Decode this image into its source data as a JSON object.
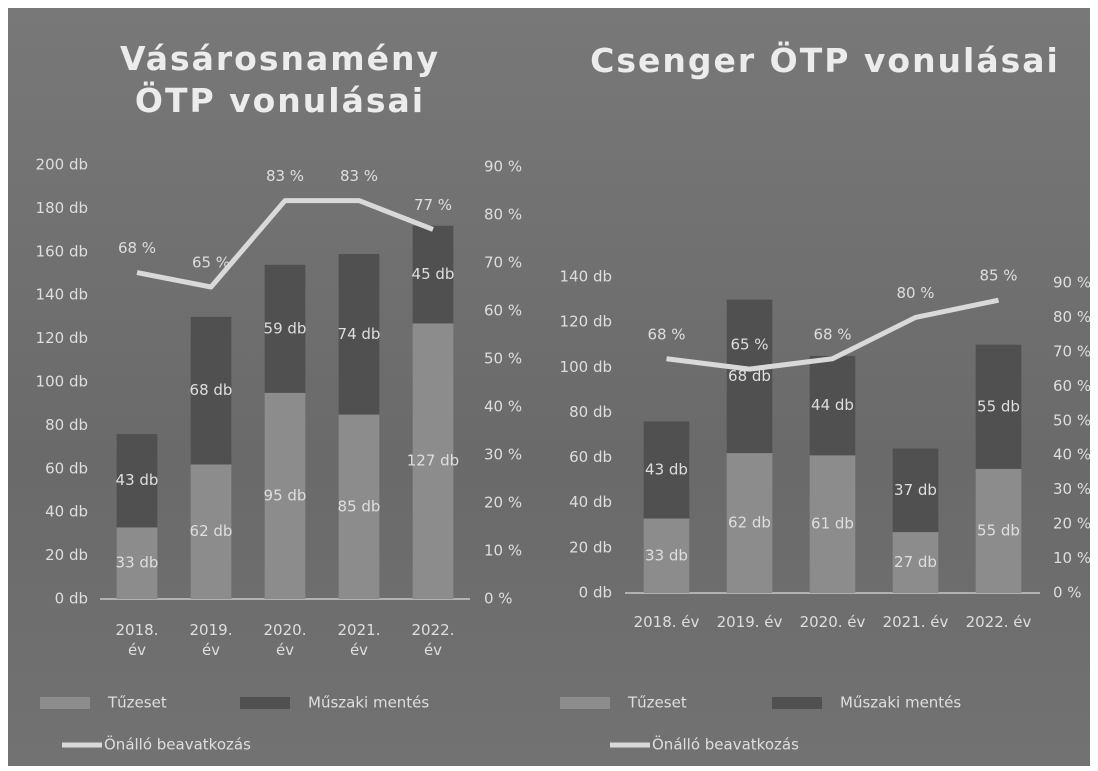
{
  "chart_data": [
    {
      "type": "bar",
      "stacked": true,
      "title": "Vásárosnamény ÖTP vonulásai",
      "categories": [
        "2018. év",
        "2019. év",
        "2020. év",
        "2021. év",
        "2022. év"
      ],
      "series": [
        {
          "name": "Tűzeset",
          "color": "#8c8c8c",
          "values": [
            33,
            62,
            95,
            85,
            127
          ],
          "value_labels": [
            "33 db",
            "62 db",
            "95 db",
            "85 db",
            "127 db"
          ]
        },
        {
          "name": "Műszaki mentés",
          "color": "#505050",
          "values": [
            43,
            68,
            59,
            74,
            45
          ],
          "value_labels": [
            "43 db",
            "68 db",
            "59 db",
            "74 db",
            "45 db"
          ]
        },
        {
          "name": "Önálló beavatkozás",
          "type": "line",
          "axis": "y2",
          "color": "#d9d9d9",
          "values": [
            68,
            65,
            83,
            83,
            77
          ],
          "value_labels": [
            "68 %",
            "65 %",
            "83 %",
            "83 %",
            "77 %"
          ]
        }
      ],
      "ylim": [
        0,
        200
      ],
      "yticks": [
        {
          "value": 0,
          "label": "0 db"
        },
        {
          "value": 20,
          "label": "20 db"
        },
        {
          "value": 40,
          "label": "40 db"
        },
        {
          "value": 60,
          "label": "60 db"
        },
        {
          "value": 80,
          "label": "80 db"
        },
        {
          "value": 100,
          "label": "100 db"
        },
        {
          "value": 120,
          "label": "120 db"
        },
        {
          "value": 140,
          "label": "140 db"
        },
        {
          "value": 160,
          "label": "160 db"
        },
        {
          "value": 180,
          "label": "180 db"
        },
        {
          "value": 200,
          "label": "200 db"
        }
      ],
      "y2lim": [
        0,
        90
      ],
      "y2ticks": [
        {
          "value": 0,
          "label": "0 %"
        },
        {
          "value": 10,
          "label": "10 %"
        },
        {
          "value": 20,
          "label": "20 %"
        },
        {
          "value": 30,
          "label": "30 %"
        },
        {
          "value": 40,
          "label": "40 %"
        },
        {
          "value": 50,
          "label": "50 %"
        },
        {
          "value": 60,
          "label": "60 %"
        },
        {
          "value": 70,
          "label": "70 %"
        },
        {
          "value": 80,
          "label": "80 %"
        },
        {
          "value": 90,
          "label": "90 %"
        }
      ],
      "legend": "bottom",
      "grid": false
    },
    {
      "type": "bar",
      "stacked": true,
      "title": "Csenger ÖTP vonulásai",
      "categories": [
        "2018. év",
        "2019. év",
        "2020. év",
        "2021. év",
        "2022. év"
      ],
      "series": [
        {
          "name": "Tűzeset",
          "color": "#8c8c8c",
          "values": [
            33,
            62,
            61,
            27,
            55
          ],
          "value_labels": [
            "33 db",
            "62 db",
            "61 db",
            "27 db",
            "55 db"
          ]
        },
        {
          "name": "Műszaki mentés",
          "color": "#505050",
          "values": [
            43,
            68,
            44,
            37,
            55
          ],
          "value_labels": [
            "43 db",
            "68 db",
            "44 db",
            "37 db",
            "55 db"
          ]
        },
        {
          "name": "Önálló beavatkozás",
          "type": "line",
          "axis": "y2",
          "color": "#d9d9d9",
          "values": [
            68,
            65,
            68,
            80,
            85
          ],
          "value_labels": [
            "68 %",
            "65 %",
            "68 %",
            "80 %",
            "85 %"
          ]
        }
      ],
      "ylim": [
        0,
        140
      ],
      "yticks": [
        {
          "value": 0,
          "label": "0 db"
        },
        {
          "value": 20,
          "label": "20 db"
        },
        {
          "value": 40,
          "label": "40 db"
        },
        {
          "value": 60,
          "label": "60 db"
        },
        {
          "value": 80,
          "label": "80 db"
        },
        {
          "value": 100,
          "label": "100 db"
        },
        {
          "value": 120,
          "label": "120 db"
        },
        {
          "value": 140,
          "label": "140 db"
        }
      ],
      "y2lim": [
        0,
        90
      ],
      "y2ticks": [
        {
          "value": 0,
          "label": "0 %"
        },
        {
          "value": 10,
          "label": "10 %"
        },
        {
          "value": 20,
          "label": "20 %"
        },
        {
          "value": 30,
          "label": "30 %"
        },
        {
          "value": 40,
          "label": "40 %"
        },
        {
          "value": 50,
          "label": "50 %"
        },
        {
          "value": 60,
          "label": "60 %"
        },
        {
          "value": 70,
          "label": "70 %"
        },
        {
          "value": 80,
          "label": "80 %"
        },
        {
          "value": 90,
          "label": "90 %"
        }
      ],
      "legend": "bottom",
      "grid": false
    }
  ]
}
